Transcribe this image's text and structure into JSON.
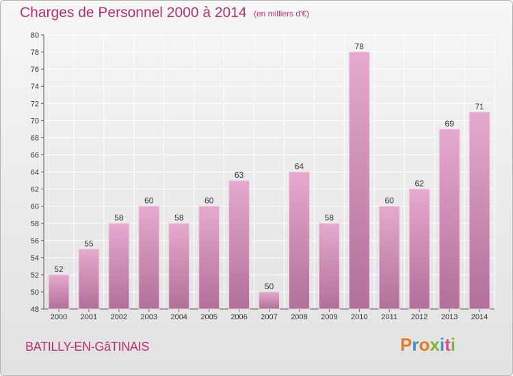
{
  "header": {
    "title": "Charges de Personnel 2000 à 2014",
    "subtitle": "(en milliers d'€)"
  },
  "footer": {
    "commune": "BATILLY-EN-GâTINAIS",
    "logo_text": "Proxiti"
  },
  "colors": {
    "title": "#b4306e",
    "bar_top": "#e6a9cf",
    "bar_bottom": "#b16f99",
    "logo": [
      "#e77a22",
      "#3b8ed0",
      "#e77a22",
      "#7bb535",
      "#3b8ed0",
      "#e64c8a",
      "#7bb535"
    ]
  },
  "chart_data": {
    "type": "bar",
    "categories": [
      "2000",
      "2001",
      "2002",
      "2003",
      "2004",
      "2005",
      "2006",
      "2007",
      "2008",
      "2009",
      "2010",
      "2011",
      "2012",
      "2013",
      "2014"
    ],
    "values": [
      52,
      55,
      58,
      60,
      58,
      60,
      63,
      50,
      64,
      58,
      78,
      60,
      62,
      69,
      71
    ],
    "ylim": [
      48,
      80
    ],
    "ytick_step": 2,
    "grid": true,
    "data_labels": true,
    "xlabel": "",
    "ylabel": ""
  }
}
